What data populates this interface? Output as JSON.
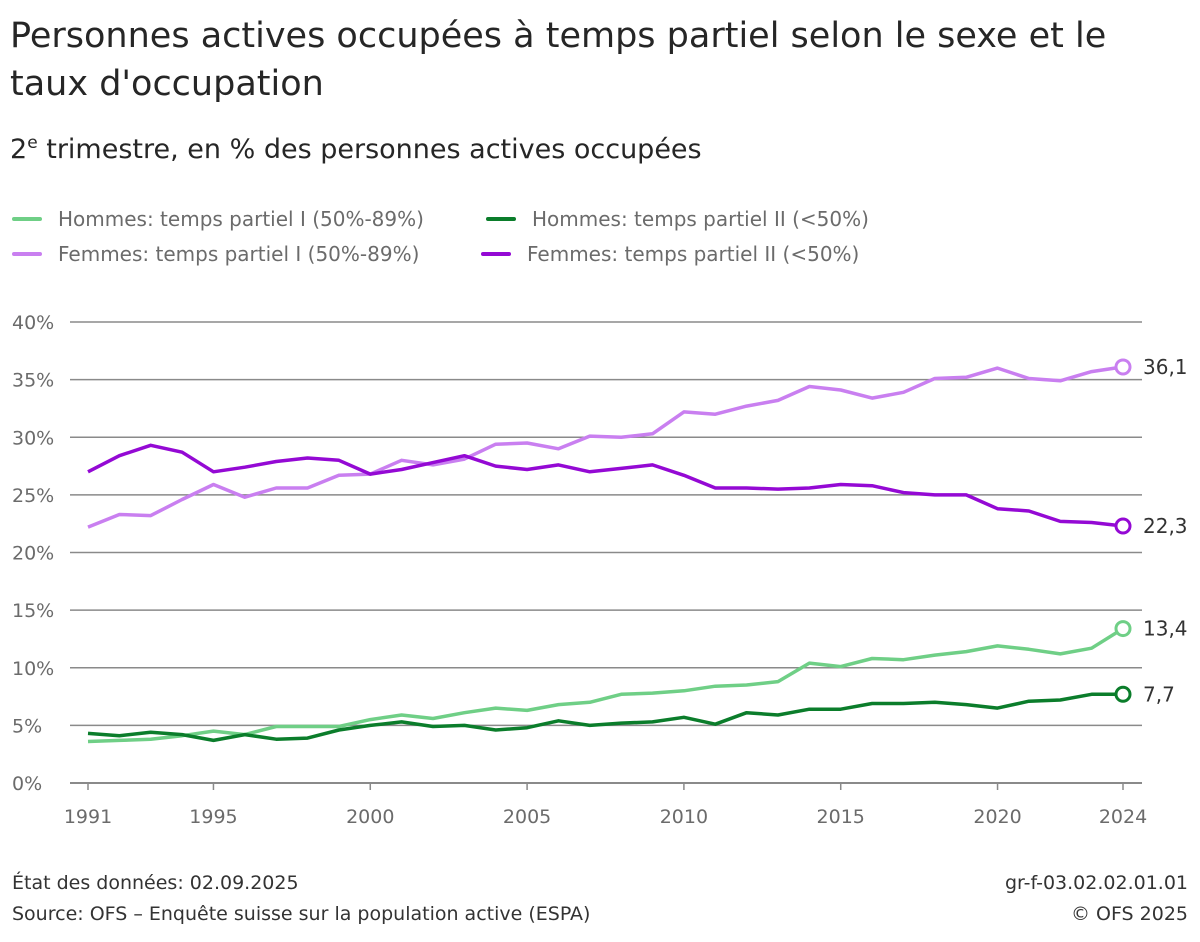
{
  "title": "Personnes actives occupées à temps partiel selon le sexe et le taux d'occupation",
  "subtitle_prefix": "2",
  "subtitle_sup": "e",
  "subtitle_rest": " trimestre, en % des personnes actives occupées",
  "footer": {
    "data_state": "État des données: 02.09.2025",
    "source": "Source: OFS – Enquête suisse sur la population active (ESPA)",
    "code": "gr-f-03.02.02.01.01",
    "copyright": "© OFS 2025"
  },
  "chart_data": {
    "type": "line",
    "title": "Personnes actives occupées à temps partiel selon le sexe et le taux d'occupation",
    "ylabel": "",
    "xlabel": "",
    "ylim": [
      0,
      40
    ],
    "xlim": [
      1991,
      2024
    ],
    "yticks": [
      "0%",
      "5%",
      "10%",
      "15%",
      "20%",
      "25%",
      "30%",
      "35%",
      "40%"
    ],
    "xticks": [
      "1991",
      "1995",
      "2000",
      "2005",
      "2010",
      "2015",
      "2020",
      "2024"
    ],
    "grid": true,
    "legend_placement": "top",
    "x": [
      1991,
      1992,
      1993,
      1994,
      1995,
      1996,
      1997,
      1998,
      1999,
      2000,
      2001,
      2002,
      2003,
      2004,
      2005,
      2006,
      2007,
      2008,
      2009,
      2010,
      2011,
      2012,
      2013,
      2014,
      2015,
      2016,
      2017,
      2018,
      2019,
      2020,
      2021,
      2022,
      2023,
      2024
    ],
    "series": [
      {
        "name": "Hommes: temps partiel I (50%-89%)",
        "color": "#6fcf86",
        "end_label": "13,4",
        "values": [
          3.6,
          3.7,
          3.8,
          4.1,
          4.5,
          4.2,
          4.9,
          4.9,
          4.9,
          5.5,
          5.9,
          5.6,
          6.1,
          6.5,
          6.3,
          6.8,
          7.0,
          7.7,
          7.8,
          8.0,
          8.4,
          8.5,
          8.8,
          10.4,
          10.1,
          10.8,
          10.7,
          11.1,
          11.4,
          11.9,
          11.6,
          11.2,
          11.7,
          13.4
        ]
      },
      {
        "name": "Hommes: temps partiel II (<50%)",
        "color": "#0b7d2b",
        "end_label": "7,7",
        "values": [
          4.3,
          4.1,
          4.4,
          4.2,
          3.7,
          4.2,
          3.8,
          3.9,
          4.6,
          5.0,
          5.3,
          4.9,
          5.0,
          4.6,
          4.8,
          5.4,
          5.0,
          5.2,
          5.3,
          5.7,
          5.1,
          6.1,
          5.9,
          6.4,
          6.4,
          6.9,
          6.9,
          7.0,
          6.8,
          6.5,
          7.1,
          7.2,
          7.7,
          7.7
        ]
      },
      {
        "name": "Femmes: temps partiel I (50%-89%)",
        "color": "#c97ff0",
        "end_label": "36,1",
        "values": [
          22.2,
          23.3,
          23.2,
          24.6,
          25.9,
          24.8,
          25.6,
          25.6,
          26.7,
          26.8,
          28.0,
          27.6,
          28.1,
          29.4,
          29.5,
          29.0,
          30.1,
          30.0,
          30.3,
          32.2,
          32.0,
          32.7,
          33.2,
          34.4,
          34.1,
          33.4,
          33.9,
          35.1,
          35.2,
          36.0,
          35.1,
          34.9,
          35.7,
          36.1
        ]
      },
      {
        "name": "Femmes: temps partiel II (<50%)",
        "color": "#9409d4",
        "end_label": "22,3",
        "values": [
          27.0,
          28.4,
          29.3,
          28.7,
          27.0,
          27.4,
          27.9,
          28.2,
          28.0,
          26.8,
          27.2,
          27.8,
          28.4,
          27.5,
          27.2,
          27.6,
          27.0,
          27.3,
          27.6,
          26.7,
          25.6,
          25.6,
          25.5,
          25.6,
          25.9,
          25.8,
          25.2,
          25.0,
          25.0,
          23.8,
          23.6,
          22.7,
          22.6,
          22.3
        ]
      }
    ]
  }
}
